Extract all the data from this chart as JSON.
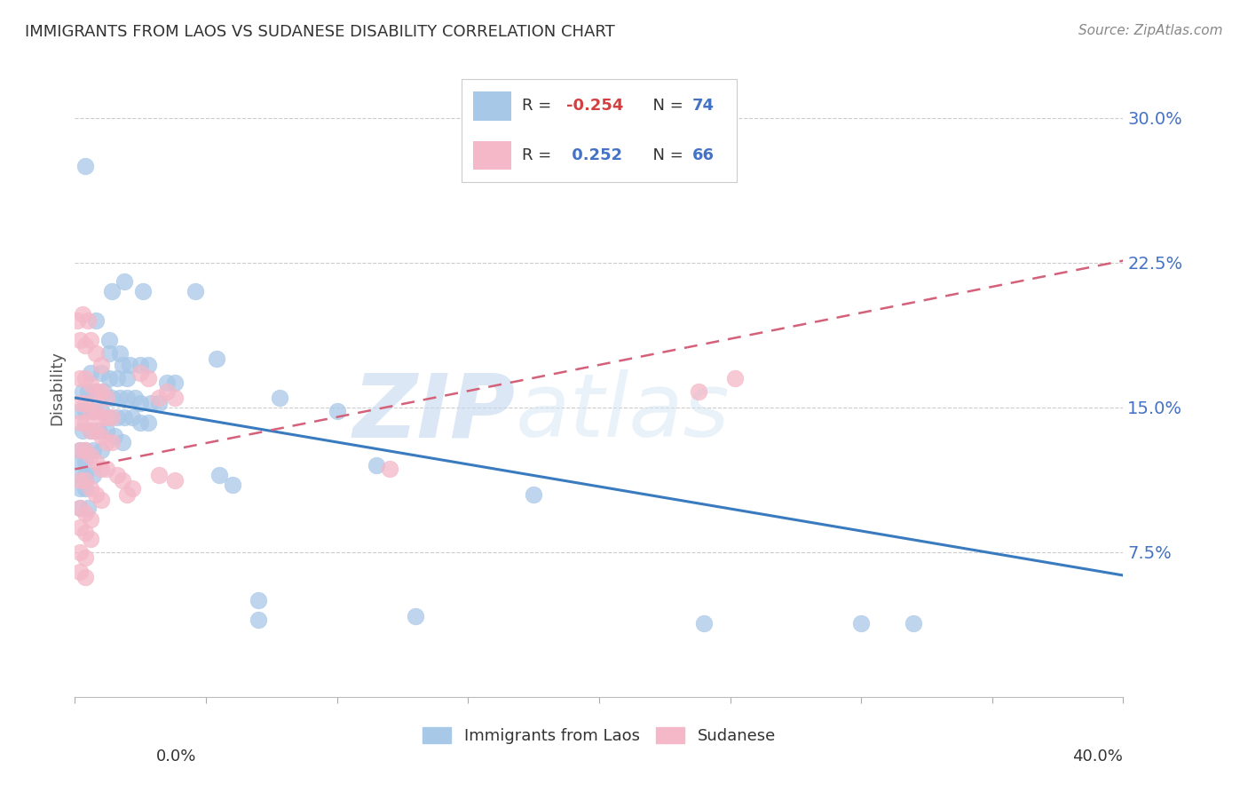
{
  "title": "IMMIGRANTS FROM LAOS VS SUDANESE DISABILITY CORRELATION CHART",
  "source": "Source: ZipAtlas.com",
  "ylabel": "Disability",
  "ytick_labels": [
    "7.5%",
    "15.0%",
    "22.5%",
    "30.0%"
  ],
  "ytick_values": [
    0.075,
    0.15,
    0.225,
    0.3
  ],
  "xlim": [
    0.0,
    0.4
  ],
  "ylim": [
    0.0,
    0.32
  ],
  "watermark1": "ZIP",
  "watermark2": "atlas",
  "blue_color": "#a8c8e8",
  "pink_color": "#f4b8c8",
  "blue_line_color": "#3a7bbf",
  "pink_line_color": "#d4607a",
  "blue_line": {
    "x0": 0.0,
    "y0": 0.155,
    "x1": 0.4,
    "y1": 0.063
  },
  "pink_line": {
    "x0": 0.0,
    "y0": 0.118,
    "x1": 0.4,
    "y1": 0.226
  },
  "blue_scatter": [
    [
      0.004,
      0.275
    ],
    [
      0.019,
      0.215
    ],
    [
      0.014,
      0.21
    ],
    [
      0.026,
      0.21
    ],
    [
      0.008,
      0.195
    ],
    [
      0.013,
      0.185
    ],
    [
      0.013,
      0.178
    ],
    [
      0.017,
      0.178
    ],
    [
      0.018,
      0.172
    ],
    [
      0.021,
      0.172
    ],
    [
      0.025,
      0.172
    ],
    [
      0.028,
      0.172
    ],
    [
      0.006,
      0.168
    ],
    [
      0.01,
      0.168
    ],
    [
      0.013,
      0.165
    ],
    [
      0.016,
      0.165
    ],
    [
      0.02,
      0.165
    ],
    [
      0.035,
      0.163
    ],
    [
      0.038,
      0.163
    ],
    [
      0.003,
      0.158
    ],
    [
      0.005,
      0.158
    ],
    [
      0.008,
      0.158
    ],
    [
      0.011,
      0.158
    ],
    [
      0.014,
      0.155
    ],
    [
      0.017,
      0.155
    ],
    [
      0.02,
      0.155
    ],
    [
      0.023,
      0.155
    ],
    [
      0.025,
      0.152
    ],
    [
      0.029,
      0.152
    ],
    [
      0.032,
      0.152
    ],
    [
      0.002,
      0.148
    ],
    [
      0.004,
      0.148
    ],
    [
      0.007,
      0.148
    ],
    [
      0.01,
      0.148
    ],
    [
      0.013,
      0.145
    ],
    [
      0.016,
      0.145
    ],
    [
      0.019,
      0.145
    ],
    [
      0.022,
      0.145
    ],
    [
      0.025,
      0.142
    ],
    [
      0.028,
      0.142
    ],
    [
      0.003,
      0.138
    ],
    [
      0.006,
      0.138
    ],
    [
      0.009,
      0.138
    ],
    [
      0.012,
      0.138
    ],
    [
      0.015,
      0.135
    ],
    [
      0.018,
      0.132
    ],
    [
      0.002,
      0.128
    ],
    [
      0.004,
      0.128
    ],
    [
      0.007,
      0.128
    ],
    [
      0.01,
      0.128
    ],
    [
      0.002,
      0.122
    ],
    [
      0.004,
      0.122
    ],
    [
      0.002,
      0.115
    ],
    [
      0.004,
      0.115
    ],
    [
      0.007,
      0.115
    ],
    [
      0.002,
      0.108
    ],
    [
      0.004,
      0.108
    ],
    [
      0.002,
      0.098
    ],
    [
      0.005,
      0.098
    ],
    [
      0.046,
      0.21
    ],
    [
      0.054,
      0.175
    ],
    [
      0.078,
      0.155
    ],
    [
      0.1,
      0.148
    ],
    [
      0.115,
      0.12
    ],
    [
      0.175,
      0.105
    ],
    [
      0.055,
      0.115
    ],
    [
      0.06,
      0.11
    ],
    [
      0.07,
      0.04
    ],
    [
      0.07,
      0.05
    ],
    [
      0.13,
      0.042
    ],
    [
      0.24,
      0.038
    ],
    [
      0.3,
      0.038
    ],
    [
      0.32,
      0.038
    ]
  ],
  "pink_scatter": [
    [
      0.001,
      0.195
    ],
    [
      0.003,
      0.198
    ],
    [
      0.005,
      0.195
    ],
    [
      0.002,
      0.185
    ],
    [
      0.004,
      0.182
    ],
    [
      0.006,
      0.185
    ],
    [
      0.008,
      0.178
    ],
    [
      0.01,
      0.172
    ],
    [
      0.002,
      0.165
    ],
    [
      0.004,
      0.165
    ],
    [
      0.006,
      0.162
    ],
    [
      0.008,
      0.158
    ],
    [
      0.01,
      0.158
    ],
    [
      0.012,
      0.155
    ],
    [
      0.002,
      0.152
    ],
    [
      0.004,
      0.152
    ],
    [
      0.006,
      0.148
    ],
    [
      0.008,
      0.148
    ],
    [
      0.01,
      0.145
    ],
    [
      0.012,
      0.145
    ],
    [
      0.014,
      0.145
    ],
    [
      0.002,
      0.142
    ],
    [
      0.004,
      0.142
    ],
    [
      0.006,
      0.138
    ],
    [
      0.008,
      0.138
    ],
    [
      0.01,
      0.135
    ],
    [
      0.012,
      0.132
    ],
    [
      0.014,
      0.132
    ],
    [
      0.002,
      0.128
    ],
    [
      0.004,
      0.128
    ],
    [
      0.006,
      0.125
    ],
    [
      0.008,
      0.122
    ],
    [
      0.01,
      0.118
    ],
    [
      0.012,
      0.118
    ],
    [
      0.002,
      0.112
    ],
    [
      0.004,
      0.112
    ],
    [
      0.006,
      0.108
    ],
    [
      0.008,
      0.105
    ],
    [
      0.01,
      0.102
    ],
    [
      0.002,
      0.098
    ],
    [
      0.004,
      0.095
    ],
    [
      0.006,
      0.092
    ],
    [
      0.002,
      0.088
    ],
    [
      0.004,
      0.085
    ],
    [
      0.006,
      0.082
    ],
    [
      0.002,
      0.075
    ],
    [
      0.004,
      0.072
    ],
    [
      0.002,
      0.065
    ],
    [
      0.004,
      0.062
    ],
    [
      0.016,
      0.115
    ],
    [
      0.018,
      0.112
    ],
    [
      0.02,
      0.105
    ],
    [
      0.022,
      0.108
    ],
    [
      0.032,
      0.115
    ],
    [
      0.038,
      0.112
    ],
    [
      0.025,
      0.168
    ],
    [
      0.028,
      0.165
    ],
    [
      0.032,
      0.155
    ],
    [
      0.035,
      0.158
    ],
    [
      0.038,
      0.155
    ],
    [
      0.238,
      0.158
    ],
    [
      0.252,
      0.165
    ],
    [
      0.12,
      0.118
    ]
  ]
}
